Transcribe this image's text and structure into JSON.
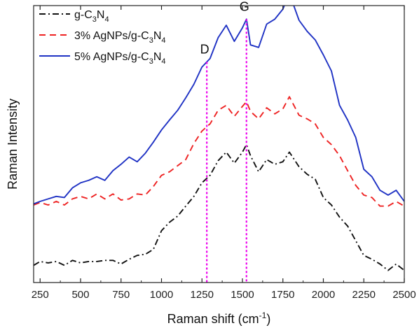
{
  "chart_data": {
    "type": "line",
    "title": "",
    "xlabel": "Raman shift (cm",
    "xlabel_sup": "-1",
    "xlabel_close": ")",
    "ylabel": "Raman Intensity",
    "xlim": [
      210,
      2500
    ],
    "ylim": [
      0,
      100
    ],
    "xticks": [
      250,
      500,
      750,
      1000,
      1250,
      1500,
      1750,
      2000,
      2250,
      2500
    ],
    "grid": false,
    "legend_position": "top-left",
    "peak_lines": [
      {
        "label": "D",
        "x": 1280,
        "color": "#ee00ee"
      },
      {
        "label": "G",
        "x": 1525,
        "color": "#ee00ee"
      }
    ],
    "series": [
      {
        "name": "g-C3N4",
        "legend_parts": [
          "g-C",
          "3",
          "N",
          "4",
          ""
        ],
        "color": "#111111",
        "dash": "dashdot",
        "x": [
          210,
          250,
          300,
          350,
          400,
          450,
          500,
          550,
          600,
          650,
          700,
          750,
          800,
          850,
          900,
          950,
          1000,
          1050,
          1100,
          1150,
          1200,
          1250,
          1300,
          1350,
          1400,
          1450,
          1500,
          1525,
          1550,
          1600,
          1650,
          1700,
          1750,
          1790,
          1850,
          1900,
          1950,
          2000,
          2050,
          2100,
          2150,
          2200,
          2250,
          2300,
          2350,
          2400,
          2450,
          2500
        ],
        "y": [
          6.2,
          7.6,
          7.1,
          7.6,
          6.2,
          8.0,
          7.1,
          7.6,
          7.6,
          8.0,
          8.0,
          6.7,
          8.4,
          9.8,
          10.2,
          12.0,
          18.7,
          21.8,
          24.0,
          27.6,
          31.1,
          36.0,
          38.7,
          44.0,
          47.1,
          43.1,
          47.1,
          49.8,
          45.8,
          40.0,
          44.4,
          42.7,
          43.6,
          47.1,
          41.8,
          39.1,
          37.3,
          30.7,
          28.0,
          23.6,
          20.4,
          15.1,
          9.8,
          8.4,
          6.7,
          4.4,
          6.7,
          4.4
        ]
      },
      {
        "name": "3% AgNPs/g-C3N4",
        "legend_parts": [
          "3% AgNPs/g-C",
          "3",
          "N",
          "4",
          ""
        ],
        "color": "#ee2222",
        "dash": "dashed",
        "x": [
          210,
          250,
          300,
          350,
          400,
          450,
          500,
          550,
          600,
          650,
          700,
          750,
          800,
          850,
          900,
          950,
          1000,
          1050,
          1100,
          1150,
          1200,
          1250,
          1300,
          1350,
          1400,
          1450,
          1500,
          1525,
          1550,
          1600,
          1650,
          1700,
          1750,
          1790,
          1850,
          1900,
          1950,
          2000,
          2050,
          2100,
          2150,
          2200,
          2250,
          2300,
          2350,
          2400,
          2450,
          2500
        ],
        "y": [
          28.0,
          28.9,
          28.0,
          29.3,
          28.0,
          30.2,
          31.1,
          30.2,
          32.0,
          30.2,
          32.0,
          29.8,
          30.2,
          32.0,
          31.6,
          34.7,
          38.7,
          40.0,
          42.2,
          44.4,
          50.2,
          54.7,
          57.3,
          62.2,
          64.0,
          60.0,
          63.6,
          65.3,
          61.8,
          59.1,
          63.1,
          60.9,
          62.7,
          67.1,
          60.4,
          59.1,
          57.3,
          52.4,
          49.8,
          45.8,
          40.4,
          35.1,
          31.6,
          30.7,
          27.6,
          27.6,
          29.3,
          27.6
        ]
      },
      {
        "name": "5% AgNPs/g-C3N4",
        "legend_parts": [
          "5% AgNPs/g-C",
          "3",
          "N",
          "4",
          ""
        ],
        "color": "#1f32c4",
        "dash": "solid",
        "x": [
          210,
          250,
          300,
          350,
          400,
          450,
          500,
          550,
          600,
          650,
          700,
          750,
          800,
          850,
          900,
          950,
          1000,
          1050,
          1100,
          1150,
          1200,
          1250,
          1300,
          1350,
          1400,
          1450,
          1500,
          1525,
          1550,
          1600,
          1650,
          1700,
          1750,
          1790,
          1850,
          1900,
          1950,
          2000,
          2050,
          2100,
          2150,
          2200,
          2250,
          2300,
          2350,
          2400,
          2450,
          2500
        ],
        "y": [
          28.4,
          29.3,
          30.2,
          31.1,
          30.7,
          34.2,
          36.0,
          36.9,
          38.2,
          36.9,
          40.4,
          42.7,
          45.3,
          43.6,
          46.7,
          50.7,
          55.1,
          58.7,
          62.2,
          66.7,
          71.6,
          77.8,
          80.9,
          88.4,
          92.9,
          87.1,
          92.0,
          95.1,
          85.8,
          84.9,
          93.3,
          95.1,
          98.7,
          104.4,
          94.7,
          90.7,
          87.6,
          82.2,
          76.4,
          64.0,
          58.7,
          52.4,
          40.9,
          38.2,
          33.3,
          31.6,
          33.3,
          29.3
        ]
      }
    ]
  }
}
